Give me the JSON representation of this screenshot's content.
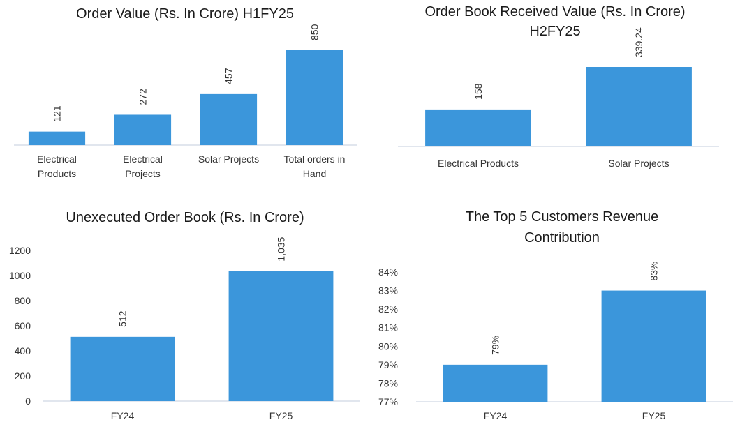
{
  "colors": {
    "bar": "#3b96db",
    "axis": "#cfd8e3"
  },
  "chart_data": [
    {
      "type": "bar",
      "title": [
        "Order Value (Rs. In Crore) H1FY25"
      ],
      "categories": [
        [
          "Electrical",
          "Products"
        ],
        [
          "Electrical",
          "Projects"
        ],
        [
          "Solar Projects"
        ],
        [
          "Total orders in",
          "Hand"
        ]
      ],
      "values": [
        121,
        272,
        457,
        850
      ],
      "value_labels": [
        "121",
        "272",
        "457",
        "850"
      ],
      "ylim": [
        0,
        850
      ],
      "show_yaxis": false,
      "grid": false
    },
    {
      "type": "bar",
      "title": [
        "Order Book Received Value (Rs. In Crore)",
        "H2FY25"
      ],
      "categories": [
        [
          "Electrical Products"
        ],
        [
          "Solar Projects"
        ]
      ],
      "values": [
        158,
        339.24
      ],
      "value_labels": [
        "158",
        "339.24"
      ],
      "ylim": [
        0,
        339.24
      ],
      "show_yaxis": false,
      "grid": false
    },
    {
      "type": "bar",
      "title": [
        "Unexecuted Order Book (Rs. In Crore)"
      ],
      "categories": [
        [
          "FY24"
        ],
        [
          "FY25"
        ]
      ],
      "values": [
        512,
        1035
      ],
      "value_labels": [
        "512",
        "1,035"
      ],
      "ylim": [
        0,
        1200
      ],
      "yticks": [
        0,
        200,
        400,
        600,
        800,
        1000,
        1200
      ],
      "ytick_labels": [
        "0",
        "200",
        "400",
        "600",
        "800",
        "1000",
        "1200"
      ],
      "show_yaxis": true,
      "grid": false
    },
    {
      "type": "bar",
      "title": [
        "The Top 5 Customers Revenue",
        "Contribution"
      ],
      "categories": [
        [
          "FY24"
        ],
        [
          "FY25"
        ]
      ],
      "values": [
        79,
        83
      ],
      "value_labels": [
        "79%",
        "83%"
      ],
      "ylim": [
        77,
        84
      ],
      "yticks": [
        77,
        78,
        79,
        80,
        81,
        82,
        83,
        84
      ],
      "ytick_labels": [
        "77%",
        "78%",
        "79%",
        "80%",
        "81%",
        "82%",
        "83%",
        "84%"
      ],
      "show_yaxis": true,
      "grid": false
    }
  ]
}
